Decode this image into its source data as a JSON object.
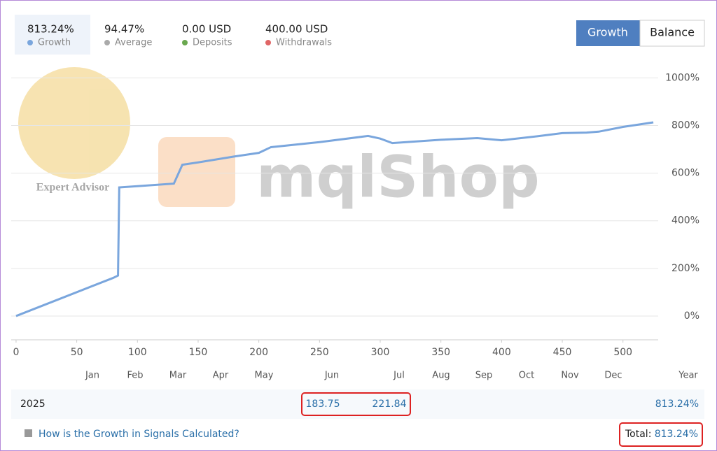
{
  "stats": [
    {
      "value": "813.24%",
      "label": "Growth",
      "color": "#7aa6dd"
    },
    {
      "value": "94.47%",
      "label": "Average",
      "color": "#aaaaaa"
    },
    {
      "value": "0.00 USD",
      "label": "Deposits",
      "color": "#6aa84f"
    },
    {
      "value": "400.00 USD",
      "label": "Withdrawals",
      "color": "#e06666"
    }
  ],
  "buttons": [
    "Growth",
    "Balance"
  ],
  "watermarks": [
    "mqlShop",
    "Expert Advisor"
  ],
  "chart_data": {
    "type": "line",
    "series": [
      {
        "name": "Growth",
        "color": "#7aa6dd",
        "x": [
          0,
          40,
          80,
          84,
          85,
          100,
          130,
          137,
          150,
          180,
          200,
          210,
          250,
          290,
          300,
          310,
          350,
          380,
          400,
          430,
          450,
          470,
          480,
          500,
          525
        ],
        "values": [
          0,
          80,
          160,
          170,
          540,
          545,
          556,
          635,
          645,
          670,
          685,
          709,
          730,
          756,
          745,
          726,
          740,
          747,
          738,
          755,
          768,
          770,
          774,
          794,
          813
        ]
      }
    ],
    "xlim": [
      -4,
      529
    ],
    "xticks": [
      0,
      50,
      100,
      150,
      200,
      250,
      300,
      350,
      400,
      450,
      500
    ],
    "ylim": [
      -100,
      1045
    ],
    "yticks": [
      {
        "value": 0,
        "label": "0%"
      },
      {
        "value": 200,
        "label": "200%"
      },
      {
        "value": 400,
        "label": "400%"
      },
      {
        "value": 600,
        "label": "600%"
      },
      {
        "value": 800,
        "label": "800%"
      },
      {
        "value": 1000,
        "label": "1000%"
      }
    ],
    "grid": true
  },
  "periods": [
    "Jan",
    "Feb",
    "Mar",
    "Apr",
    "May",
    "Jun",
    "Jul",
    "Aug",
    "Sep",
    "Oct",
    "Nov",
    "Dec",
    "Year"
  ],
  "year_row": {
    "year": "2025",
    "jun": "183.75",
    "jul": "221.84",
    "total": "813.24%"
  },
  "footer": {
    "link": "How is the Growth in Signals Calculated?",
    "total_label": "Total:",
    "total_value": "813.24%"
  }
}
